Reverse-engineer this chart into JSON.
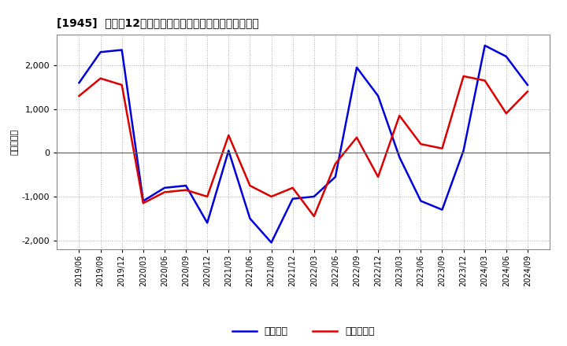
{
  "title_bracket": "[1945]",
  "title_text": "利益だ12か月移動合計の対前年同期増減額の推移",
  "ylabel": "（百万円）",
  "dates": [
    "2019/06",
    "2019/09",
    "2019/12",
    "2020/03",
    "2020/06",
    "2020/09",
    "2020/12",
    "2021/03",
    "2021/06",
    "2021/09",
    "2021/12",
    "2022/03",
    "2022/06",
    "2022/09",
    "2022/12",
    "2023/03",
    "2023/06",
    "2023/09",
    "2023/12",
    "2024/03",
    "2024/06",
    "2024/09"
  ],
  "keijo_rieki": [
    1600,
    2300,
    2350,
    -1100,
    -800,
    -750,
    -1600,
    50,
    -1500,
    -2050,
    -1050,
    -1000,
    -550,
    1950,
    1300,
    -100,
    -1100,
    -1300,
    50,
    2450,
    2200,
    1550
  ],
  "touki_jun_rieki": [
    1300,
    1700,
    1550,
    -1150,
    -900,
    -850,
    -1000,
    400,
    -750,
    -1000,
    -800,
    -1450,
    -250,
    350,
    -550,
    850,
    200,
    100,
    1750,
    1650,
    900,
    1400
  ],
  "line_color_blue": "#0000dd",
  "line_color_red": "#dd0000",
  "bg_color": "#ffffff",
  "grid_color": "#aaaaaa",
  "ylim": [
    -2200,
    2700
  ],
  "yticks": [
    -2000,
    -1000,
    0,
    1000,
    2000
  ],
  "legend_blue": "経常利益",
  "legend_red": "当期純利益"
}
